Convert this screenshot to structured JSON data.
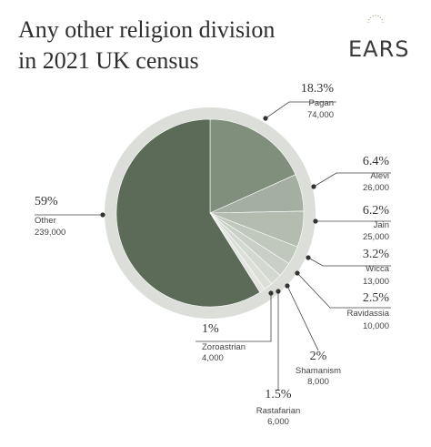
{
  "chart_data": {
    "type": "pie",
    "title": "Any other religion division in 2021 UK census",
    "logo": "EARS",
    "categories": [
      "Pagan",
      "Alevi",
      "Jain",
      "Wicca",
      "Ravidassia",
      "Shamanism",
      "Rastafarian",
      "Zoroastrian",
      "Other"
    ],
    "values": [
      18.3,
      6.4,
      6.2,
      3.2,
      2.5,
      2,
      1.5,
      1,
      59
    ],
    "value_labels": [
      "18.3%",
      "6.4%",
      "6.2%",
      "3.2%",
      "2.5%",
      "2%",
      "1.5%",
      "1%",
      "59%"
    ],
    "counts": [
      {
        "value": 74000,
        "label": "74,000"
      },
      {
        "value": 26000,
        "label": "26,000"
      },
      {
        "value": 25000,
        "label": "25,000"
      },
      {
        "value": 13000,
        "label": "13,000"
      },
      {
        "value": 10000,
        "label": "10,000"
      },
      {
        "value": 8000,
        "label": "8,000"
      },
      {
        "value": 6000,
        "label": "6,000"
      },
      {
        "value": 4000,
        "label": "4,000"
      },
      {
        "value": 239000,
        "label": "239,000"
      }
    ],
    "colors": [
      "#7f8f7c",
      "#a5afa1",
      "#b4bcb0",
      "#c0c7bd",
      "#cad0c7",
      "#d3d8d0",
      "#dbdfd8",
      "#e2e5df",
      "#5b6b58"
    ]
  }
}
